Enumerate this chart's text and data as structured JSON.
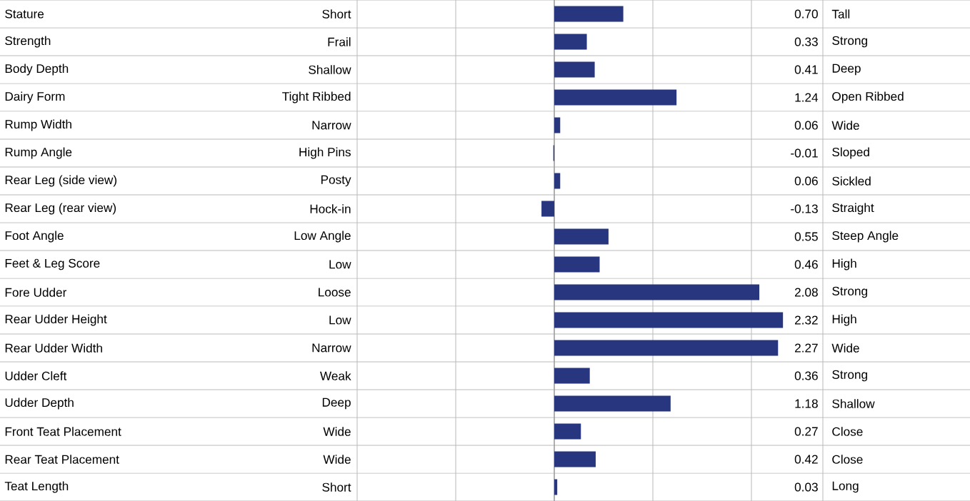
{
  "chart_data": {
    "type": "bar",
    "orientation": "horizontal",
    "categories": [
      "Stature",
      "Strength",
      "Body Depth",
      "Dairy Form",
      "Rump Width",
      "Rump Angle",
      "Rear Leg (side view)",
      "Rear Leg (rear view)",
      "Foot Angle",
      "Feet & Leg Score",
      "Fore Udder",
      "Rear Udder Height",
      "Rear Udder Width",
      "Udder Cleft",
      "Udder Depth",
      "Front Teat Placement",
      "Rear Teat Placement",
      "Teat Length"
    ],
    "values": [
      0.7,
      0.33,
      0.41,
      1.24,
      0.06,
      -0.01,
      0.06,
      -0.13,
      0.55,
      0.46,
      2.08,
      2.32,
      2.27,
      0.36,
      1.18,
      0.27,
      0.42,
      0.03
    ],
    "value_labels": [
      "0.70",
      "0.33",
      "0.41",
      "1.24",
      "0.06",
      "-0.01",
      "0.06",
      "-0.13",
      "0.55",
      "0.46",
      "2.08",
      "2.32",
      "2.27",
      "0.36",
      "1.18",
      "0.27",
      "0.42",
      "0.03"
    ],
    "color": "#27367f",
    "xticks": [
      {
        "value": -2,
        "label": null
      },
      {
        "value": -1,
        "label": null
      },
      {
        "value": 0,
        "label": null
      },
      {
        "value": 1,
        "label": null
      },
      {
        "value": 2,
        "label": null
      }
    ],
    "grid": "x",
    "annotations": [
      "Short",
      "Frail",
      "Shallow",
      "Tight Ribbed",
      "Narrow",
      "High Pins",
      "Posty",
      "Hock-in",
      "Low Angle",
      "Low",
      "Loose",
      "Low",
      "Narrow",
      "Weak",
      "Deep",
      "Wide",
      "Wide",
      "Short",
      "Tall",
      "Strong",
      "Deep",
      "Open Ribbed",
      "Wide",
      "Sloped",
      "Sickled",
      "Straight",
      "Steep Angle",
      "High",
      "Strong",
      "High",
      "Wide",
      "Strong",
      "Shallow",
      "Close",
      "Close",
      "Long"
    ]
  }
}
